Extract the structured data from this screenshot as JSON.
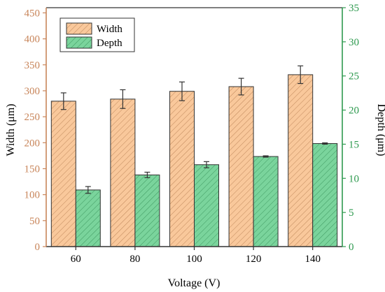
{
  "chart_data": {
    "type": "bar",
    "xlabel": "Voltage (V)",
    "ylabel_left": "Width (μm)",
    "ylabel_right": "Depth (μm)",
    "categories": [
      "60",
      "80",
      "100",
      "120",
      "140"
    ],
    "y_left": {
      "lim": [
        0,
        460
      ],
      "ticks": [
        "0",
        "50",
        "100",
        "150",
        "200",
        "250",
        "300",
        "350",
        "400",
        "450"
      ]
    },
    "y_right": {
      "lim": [
        0,
        35
      ],
      "ticks": [
        "0",
        "5",
        "10",
        "15",
        "20",
        "25",
        "30",
        "35"
      ]
    },
    "grid": false,
    "legend_position": "top-left",
    "series": [
      {
        "name": "Width",
        "axis": "left",
        "values": [
          280,
          284,
          299,
          308,
          331
        ],
        "errors": [
          16,
          18,
          18,
          16,
          17
        ],
        "color": "#f9c89b",
        "hatch": "diagonal"
      },
      {
        "name": "Depth",
        "axis": "right",
        "values": [
          8.3,
          10.5,
          12.0,
          13.2,
          15.1
        ],
        "errors": [
          0.5,
          0.4,
          0.45,
          0.1,
          0.1
        ],
        "color": "#7ad49c",
        "hatch": "diagonal"
      }
    ],
    "colors": {
      "left_axis": "#c8855a",
      "right_axis": "#2e9a4f",
      "bar_border": "#333333"
    }
  }
}
